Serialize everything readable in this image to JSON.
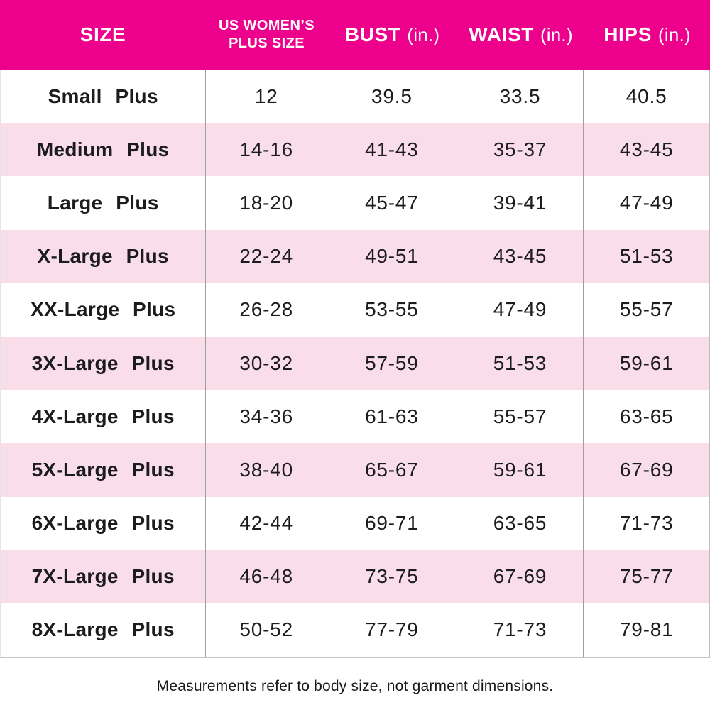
{
  "chart_data": {
    "type": "table",
    "columns": [
      {
        "title": "SIZE",
        "unit": ""
      },
      {
        "title": "US WOMEN’S\nPLUS SIZE",
        "unit": ""
      },
      {
        "title": "BUST",
        "unit": "(in.)"
      },
      {
        "title": "WAIST",
        "unit": "(in.)"
      },
      {
        "title": "HIPS",
        "unit": "(in.)"
      }
    ],
    "rows": [
      [
        "Small Plus",
        "12",
        "39.5",
        "33.5",
        "40.5"
      ],
      [
        "Medium Plus",
        "14-16",
        "41-43",
        "35-37",
        "43-45"
      ],
      [
        "Large Plus",
        "18-20",
        "45-47",
        "39-41",
        "47-49"
      ],
      [
        "X-Large Plus",
        "22-24",
        "49-51",
        "43-45",
        "51-53"
      ],
      [
        "XX-Large Plus",
        "26-28",
        "53-55",
        "47-49",
        "55-57"
      ],
      [
        "3X-Large Plus",
        "30-32",
        "57-59",
        "51-53",
        "59-61"
      ],
      [
        "4X-Large Plus",
        "34-36",
        "61-63",
        "55-57",
        "63-65"
      ],
      [
        "5X-Large Plus",
        "38-40",
        "65-67",
        "59-61",
        "67-69"
      ],
      [
        "6X-Large Plus",
        "42-44",
        "69-71",
        "63-65",
        "71-73"
      ],
      [
        "7X-Large Plus",
        "46-48",
        "73-75",
        "67-69",
        "75-77"
      ],
      [
        "8X-Large Plus",
        "50-52",
        "77-79",
        "71-73",
        "79-81"
      ]
    ]
  },
  "footnote": "Measurements refer to body size, not garment dimensions.",
  "colors": {
    "header_bg": "#EC008C",
    "header_text": "#FFFFFF",
    "alt_row_bg": "#F9DEE9",
    "body_text": "#1C1C1E",
    "divider": "#9E9E9E",
    "table_border": "#C4C4C4"
  }
}
